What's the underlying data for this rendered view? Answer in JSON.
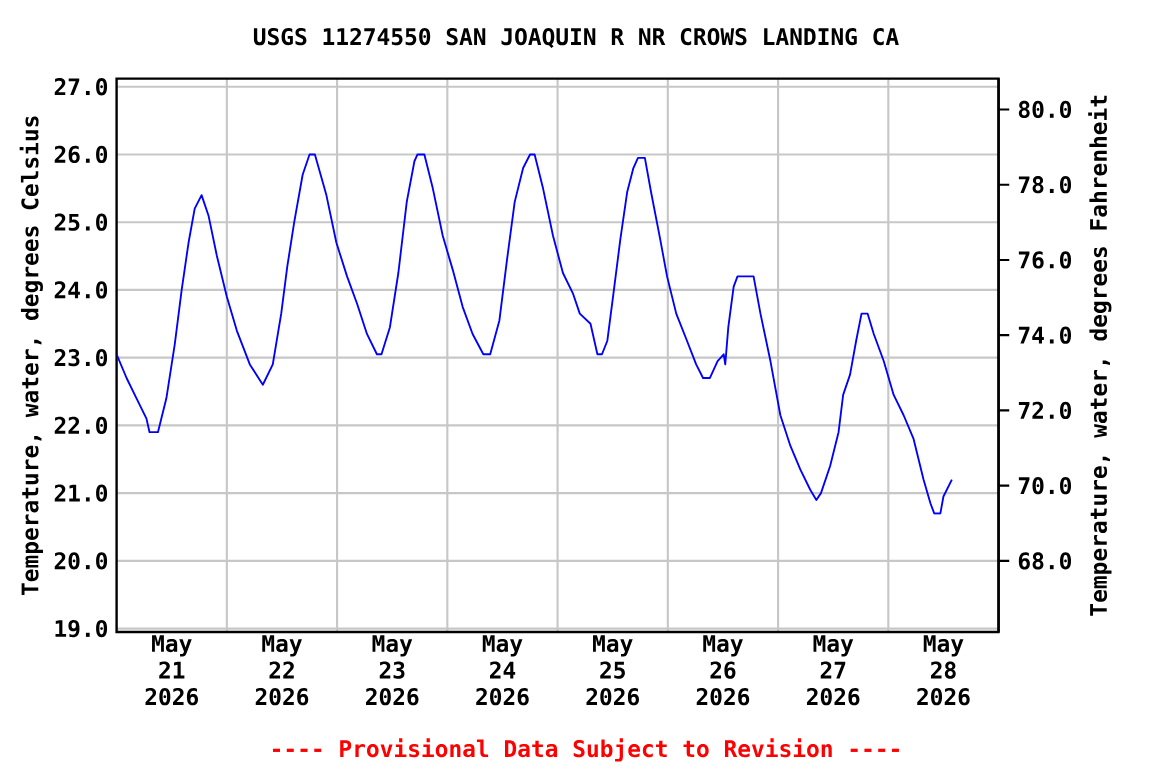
{
  "chart_data": {
    "type": "line",
    "title": "USGS 11274550 SAN JOAQUIN R NR CROWS LANDING CA",
    "ylabel": "Temperature, water, degrees Celsius",
    "y2label": "Temperature, water, degrees Fahrenheit",
    "annotations": [
      "---- Provisional Data Subject to Revision ----"
    ],
    "xlim": [
      "2026-05-21T00:00",
      "2026-05-29T00:00"
    ],
    "xticks": [
      {
        "value": "2026-05-21T12:00",
        "label": "May 21 2026"
      },
      {
        "value": "2026-05-22T12:00",
        "label": "May 22 2026"
      },
      {
        "value": "2026-05-23T12:00",
        "label": "May 23 2026"
      },
      {
        "value": "2026-05-24T12:00",
        "label": "May 24 2026"
      },
      {
        "value": "2026-05-25T12:00",
        "label": "May 25 2026"
      },
      {
        "value": "2026-05-26T12:00",
        "label": "May 26 2026"
      },
      {
        "value": "2026-05-27T12:00",
        "label": "May 27 2026"
      },
      {
        "value": "2026-05-28T12:00",
        "label": "May 28 2026"
      },
      {
        "value": "2026-05-22T00:00",
        "label": null
      },
      {
        "value": "2026-05-23T00:00",
        "label": null
      },
      {
        "value": "2026-05-24T00:00",
        "label": null
      },
      {
        "value": "2026-05-25T00:00",
        "label": null
      },
      {
        "value": "2026-05-26T00:00",
        "label": null
      },
      {
        "value": "2026-05-27T00:00",
        "label": null
      },
      {
        "value": "2026-05-28T00:00",
        "label": null
      }
    ],
    "ylim": [
      18.95,
      27.12
    ],
    "yticks": [
      {
        "value": 19,
        "label": "19.0"
      },
      {
        "value": 20,
        "label": "20.0"
      },
      {
        "value": 21,
        "label": "21.0"
      },
      {
        "value": 22,
        "label": "22.0"
      },
      {
        "value": 23,
        "label": "23.0"
      },
      {
        "value": 24,
        "label": "24.0"
      },
      {
        "value": 25,
        "label": "25.0"
      },
      {
        "value": 26,
        "label": "26.0"
      },
      {
        "value": 27,
        "label": "27.0"
      }
    ],
    "y2lim": [
      66.11,
      80.82
    ],
    "y2ticks": [
      {
        "value": 68,
        "label": "68.0"
      },
      {
        "value": 70,
        "label": "70.0"
      },
      {
        "value": 72,
        "label": "72.0"
      },
      {
        "value": 74,
        "label": "74.0"
      },
      {
        "value": 76,
        "label": "76.0"
      },
      {
        "value": 78,
        "label": "78.0"
      },
      {
        "value": 80,
        "label": "80.0"
      }
    ],
    "grid": true,
    "series": [
      {
        "color": "#0000ff",
        "x": [
          "2026-05-21T00:00",
          "2026-05-21T02:10",
          "2026-05-21T04:20",
          "2026-05-21T06:30",
          "2026-05-21T07:10",
          "2026-05-21T09:00",
          "2026-05-21T10:50",
          "2026-05-21T12:40",
          "2026-05-21T14:10",
          "2026-05-21T15:40",
          "2026-05-21T17:00",
          "2026-05-21T18:30",
          "2026-05-21T20:00",
          "2026-05-21T21:50",
          "2026-05-22T00:00",
          "2026-05-22T02:10",
          "2026-05-22T05:00",
          "2026-05-22T07:50",
          "2026-05-22T10:00",
          "2026-05-22T11:50",
          "2026-05-22T13:10",
          "2026-05-22T14:40",
          "2026-05-22T16:30",
          "2026-05-22T18:00",
          "2026-05-22T19:10",
          "2026-05-22T21:40",
          "2026-05-22T23:50",
          "2026-05-23T02:10",
          "2026-05-23T04:20",
          "2026-05-23T06:30",
          "2026-05-23T08:40",
          "2026-05-23T09:40",
          "2026-05-23T11:30",
          "2026-05-23T13:20",
          "2026-05-23T15:10",
          "2026-05-23T16:50",
          "2026-05-23T17:30",
          "2026-05-23T19:00",
          "2026-05-23T20:50",
          "2026-05-23T23:00",
          "2026-05-24T01:10",
          "2026-05-24T03:20",
          "2026-05-24T05:30",
          "2026-05-24T07:50",
          "2026-05-24T09:20",
          "2026-05-24T11:20",
          "2026-05-24T13:00",
          "2026-05-24T14:40",
          "2026-05-24T16:30",
          "2026-05-24T18:00",
          "2026-05-24T19:00",
          "2026-05-24T20:50",
          "2026-05-24T23:00",
          "2026-05-25T01:10",
          "2026-05-25T03:20",
          "2026-05-25T04:50",
          "2026-05-25T07:10",
          "2026-05-25T08:40",
          "2026-05-25T09:40",
          "2026-05-25T10:50",
          "2026-05-25T12:10",
          "2026-05-25T13:40",
          "2026-05-25T15:10",
          "2026-05-25T16:30",
          "2026-05-25T17:30",
          "2026-05-25T19:00",
          "2026-05-25T20:20",
          "2026-05-25T22:20",
          "2026-05-25T23:50",
          "2026-05-26T01:50",
          "2026-05-26T04:10",
          "2026-05-26T06:10",
          "2026-05-26T07:40",
          "2026-05-26T09:10",
          "2026-05-26T10:50",
          "2026-05-26T12:10",
          "2026-05-26T12:30",
          "2026-05-26T13:10",
          "2026-05-26T14:20",
          "2026-05-26T15:10",
          "2026-05-26T18:40",
          "2026-05-26T20:10",
          "2026-05-26T22:20",
          "2026-05-27T00:30",
          "2026-05-27T02:40",
          "2026-05-27T04:50",
          "2026-05-27T07:00",
          "2026-05-27T08:20",
          "2026-05-27T09:20",
          "2026-05-27T11:20",
          "2026-05-27T13:10",
          "2026-05-27T14:10",
          "2026-05-27T15:40",
          "2026-05-27T17:00",
          "2026-05-27T18:10",
          "2026-05-27T19:30",
          "2026-05-27T20:50",
          "2026-05-27T23:00",
          "2026-05-28T01:10",
          "2026-05-28T03:20",
          "2026-05-28T05:30",
          "2026-05-28T07:40",
          "2026-05-28T09:10",
          "2026-05-28T10:00",
          "2026-05-28T11:20",
          "2026-05-28T12:00",
          "2026-05-28T13:50"
        ],
        "values": [
          23.05,
          22.7,
          22.4,
          22.1,
          21.9,
          21.9,
          22.4,
          23.2,
          24.0,
          24.7,
          25.2,
          25.4,
          25.1,
          24.5,
          23.9,
          23.4,
          22.9,
          22.6,
          22.9,
          23.65,
          24.35,
          25.0,
          25.7,
          26.0,
          26.0,
          25.4,
          24.7,
          24.2,
          23.8,
          23.35,
          23.05,
          23.05,
          23.45,
          24.25,
          25.3,
          25.9,
          26.0,
          26.0,
          25.5,
          24.8,
          24.3,
          23.75,
          23.35,
          23.05,
          23.05,
          23.55,
          24.45,
          25.3,
          25.8,
          26.0,
          26.0,
          25.5,
          24.8,
          24.25,
          23.95,
          23.65,
          23.5,
          23.05,
          23.05,
          23.25,
          23.95,
          24.75,
          25.45,
          25.8,
          25.95,
          25.95,
          25.45,
          24.75,
          24.2,
          23.65,
          23.25,
          22.9,
          22.7,
          22.7,
          22.95,
          23.05,
          22.9,
          23.45,
          24.05,
          24.2,
          24.2,
          23.65,
          22.95,
          22.15,
          21.7,
          21.35,
          21.05,
          20.9,
          21.0,
          21.4,
          21.9,
          22.45,
          22.75,
          23.25,
          23.65,
          23.65,
          23.35,
          22.95,
          22.45,
          22.15,
          21.8,
          21.2,
          20.85,
          20.7,
          20.7,
          20.95,
          21.2
        ]
      }
    ]
  }
}
